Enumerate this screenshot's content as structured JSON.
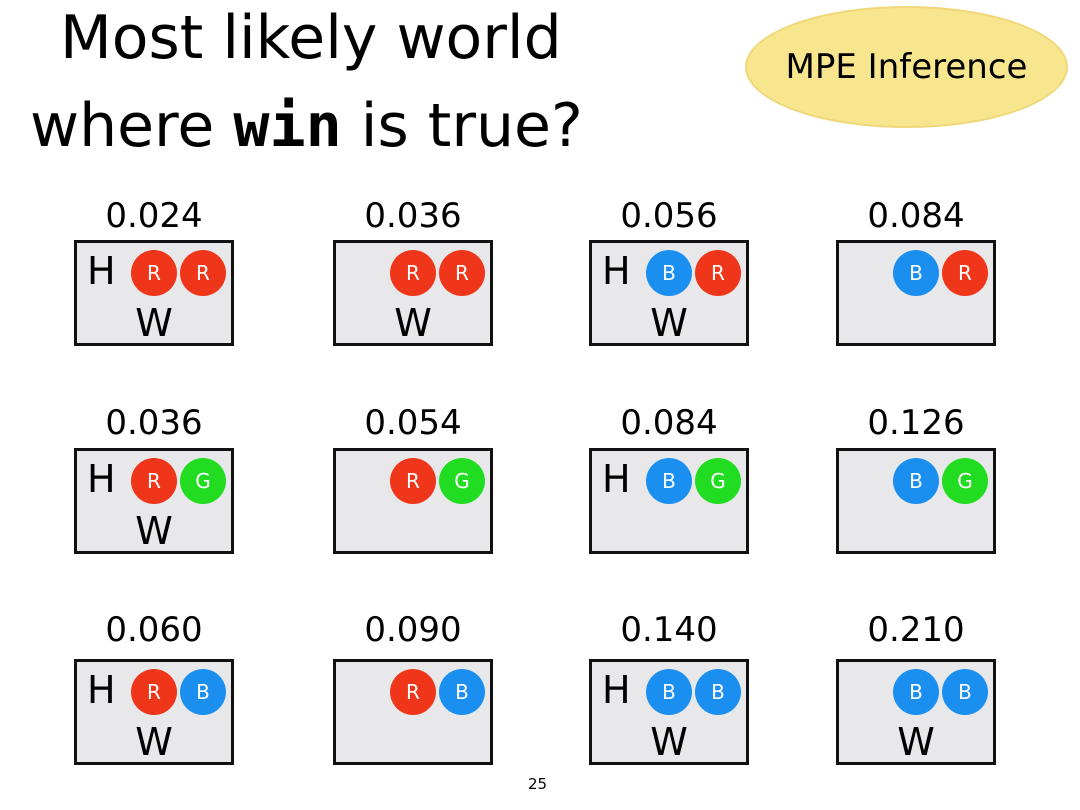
{
  "title": {
    "line1": "Most likely world",
    "line2_pre": "where ",
    "line2_code": "win",
    "line2_post": " is true?"
  },
  "badge": "MPE Inference",
  "colors": {
    "R": "#f0361a",
    "B": "#1a8ff0",
    "G": "#22dc22",
    "badge": "#f8e68e"
  },
  "worlds": [
    {
      "prob": "0.024",
      "H": true,
      "W": true,
      "balls": [
        "R",
        "R"
      ]
    },
    {
      "prob": "0.036",
      "H": false,
      "W": true,
      "balls": [
        "R",
        "R"
      ]
    },
    {
      "prob": "0.056",
      "H": true,
      "W": true,
      "balls": [
        "B",
        "R"
      ]
    },
    {
      "prob": "0.084",
      "H": false,
      "W": false,
      "balls": [
        "B",
        "R"
      ]
    },
    {
      "prob": "0.036",
      "H": true,
      "W": true,
      "balls": [
        "R",
        "G"
      ]
    },
    {
      "prob": "0.054",
      "H": false,
      "W": false,
      "balls": [
        "R",
        "G"
      ]
    },
    {
      "prob": "0.084",
      "H": true,
      "W": false,
      "balls": [
        "B",
        "G"
      ]
    },
    {
      "prob": "0.126",
      "H": false,
      "W": false,
      "balls": [
        "B",
        "G"
      ]
    },
    {
      "prob": "0.060",
      "H": true,
      "W": true,
      "balls": [
        "R",
        "B"
      ]
    },
    {
      "prob": "0.090",
      "H": false,
      "W": false,
      "balls": [
        "R",
        "B"
      ]
    },
    {
      "prob": "0.140",
      "H": true,
      "W": true,
      "balls": [
        "B",
        "B"
      ]
    },
    {
      "prob": "0.210",
      "H": false,
      "W": true,
      "balls": [
        "B",
        "B"
      ]
    }
  ],
  "labels": {
    "H": "H",
    "W": "W"
  },
  "page_number": "25"
}
